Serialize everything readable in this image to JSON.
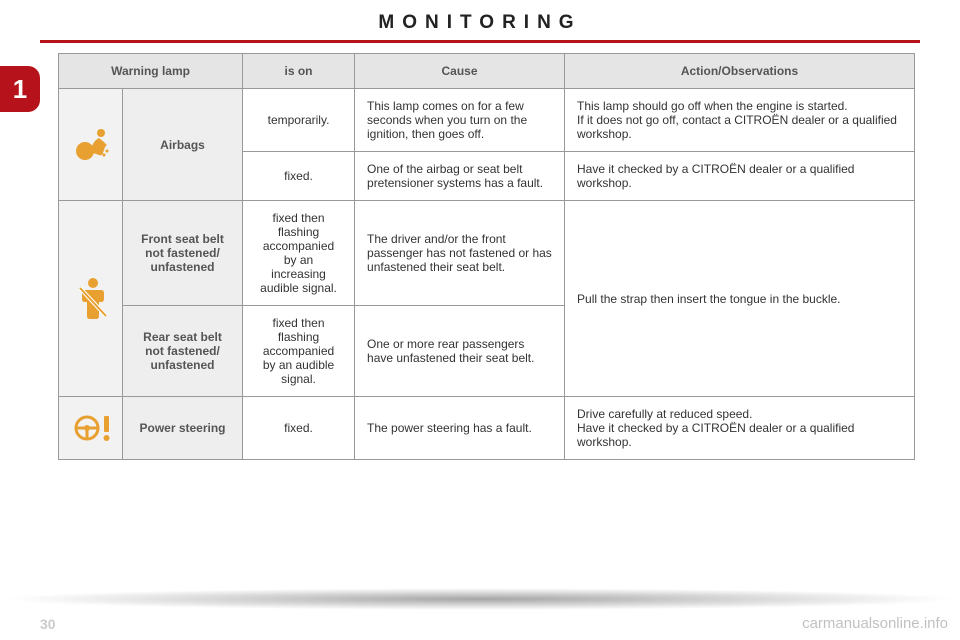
{
  "title": "MONITORING",
  "side_tab": "1",
  "page_number": "30",
  "watermark": "carmanualsonline.info",
  "colors": {
    "accent": "#b5121b",
    "header_bg": "#e5e5e5",
    "label_bg": "#eeeeee",
    "icon_color": "#e8a030",
    "border": "#999999",
    "text": "#333333"
  },
  "headers": {
    "warning_lamp": "Warning lamp",
    "is_on": "is on",
    "cause": "Cause",
    "action": "Action/Observations"
  },
  "rows": {
    "airbags": {
      "label": "Airbags",
      "icon": "airbag-icon",
      "r1": {
        "state": "temporarily.",
        "cause": "This lamp comes on for a few seconds when you turn on the ignition, then goes off.",
        "action": "This lamp should go off when the engine is started.\nIf it does not go off, contact a CITROËN dealer or a qualified workshop."
      },
      "r2": {
        "state": "fixed.",
        "cause": "One of the airbag or seat belt pretensioner systems has a fault.",
        "action": "Have it checked by a CITROËN dealer or a qualified workshop."
      }
    },
    "seatbelt": {
      "front_label": "Front seat belt not fastened/ unfastened",
      "rear_label": "Rear seat belt not fastened/ unfastened",
      "icon": "seatbelt-icon",
      "r1": {
        "state": "fixed then flashing accompanied by an increasing audible signal.",
        "cause": "The driver and/or the front passenger has not fastened or has unfastened their seat belt."
      },
      "r2": {
        "state": "fixed then flashing accompanied by an audible signal.",
        "cause": "One or more rear passengers have unfastened their seat belt."
      },
      "action": "Pull the strap then insert the tongue in the buckle."
    },
    "power_steering": {
      "label": "Power steering",
      "icon": "steering-icon",
      "state": "fixed.",
      "cause": "The power steering has a fault.",
      "action": "Drive carefully at reduced speed.\nHave it checked by a CITROËN dealer or a qualified workshop."
    }
  }
}
